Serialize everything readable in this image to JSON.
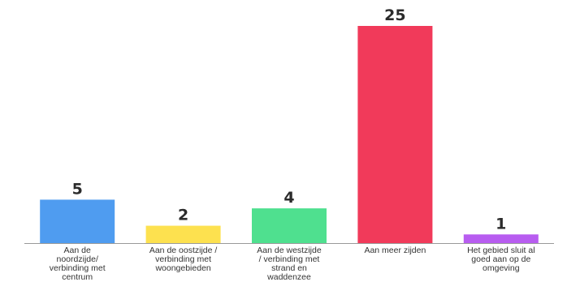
{
  "chart_data": {
    "type": "bar",
    "title": "",
    "xlabel": "",
    "ylabel": "",
    "ylim": [
      0,
      25
    ],
    "grid": false,
    "legend": "none",
    "categories": [
      [
        "Aan de",
        "noordzijde/",
        "verbinding met",
        "centrum"
      ],
      [
        "Aan de oostzijde /",
        "verbinding met",
        "woongebieden"
      ],
      [
        "Aan de westzijde",
        "/ verbinding met",
        "strand en",
        "waddenzee"
      ],
      [
        "Aan meer zijden"
      ],
      [
        "Het gebied sluit al",
        "goed aan op de",
        "omgeving"
      ]
    ],
    "values": [
      5,
      2,
      4,
      25,
      1
    ],
    "colors": [
      "#4f9cf0",
      "#fde14f",
      "#4fe08f",
      "#f13a5a",
      "#b85df0"
    ]
  }
}
